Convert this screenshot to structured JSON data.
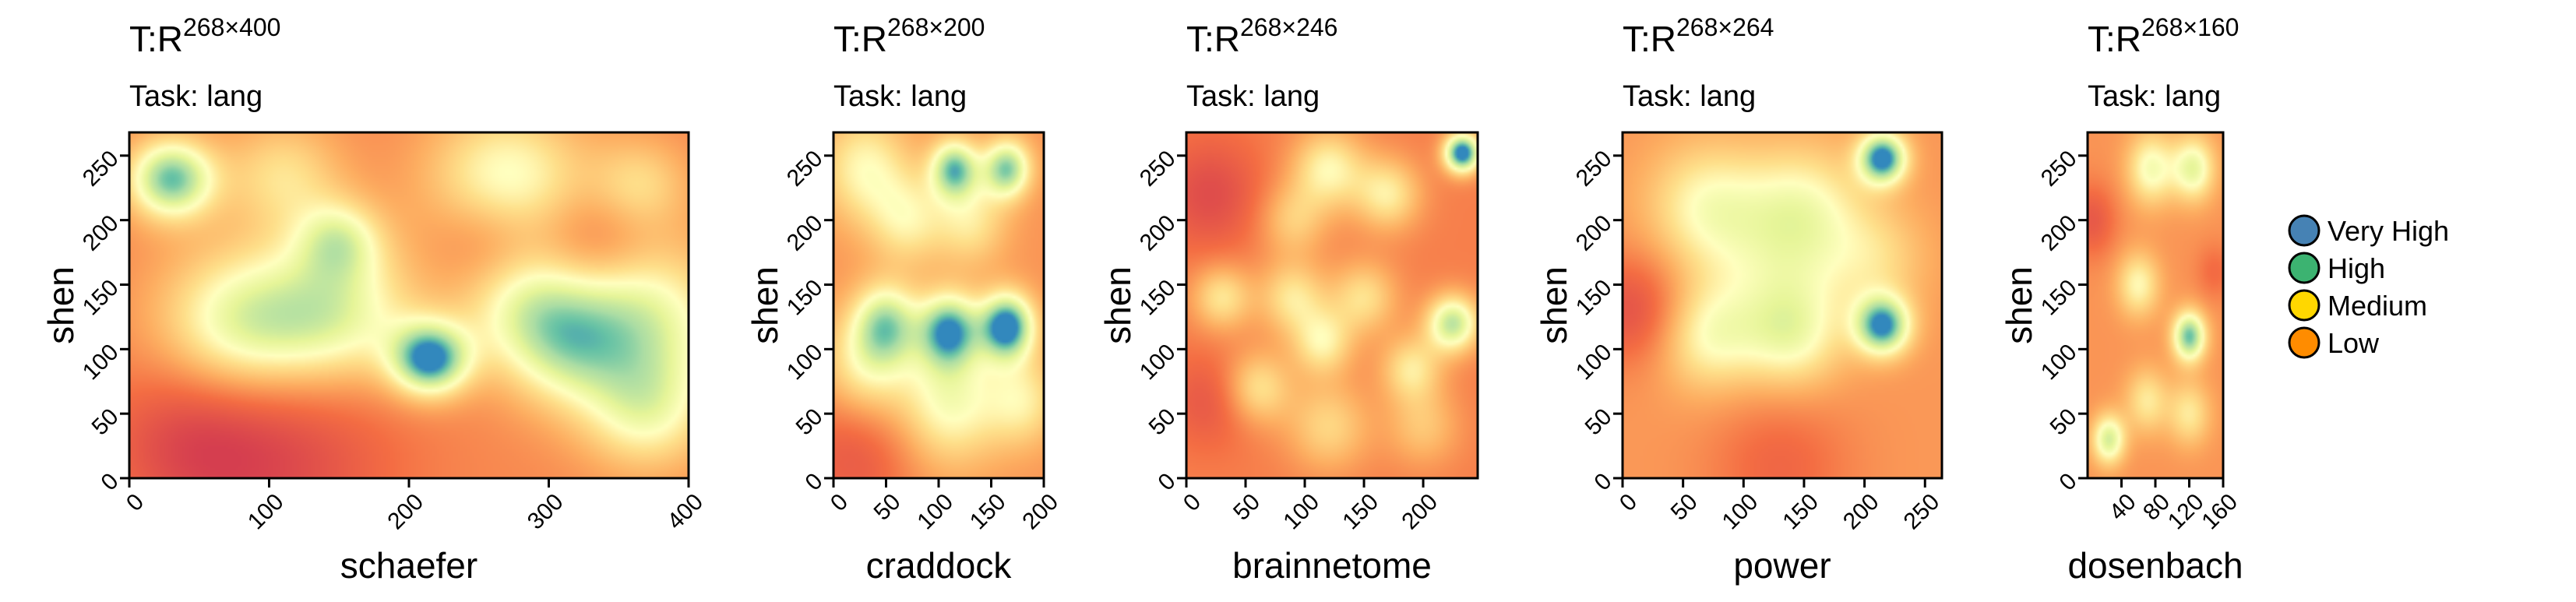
{
  "chart_data": [
    {
      "type": "heatmap",
      "title": "T:R",
      "title_superscript": "268×400",
      "subtitle": "Task: lang",
      "xlabel": "schaefer",
      "ylabel": "shen",
      "xlim": [
        0,
        400
      ],
      "ylim": [
        0,
        268
      ],
      "xticks": [
        0,
        100,
        200,
        300,
        400
      ],
      "xtick_labels": [
        "0",
        "100",
        "200",
        "300",
        "400"
      ],
      "yticks": [
        0,
        50,
        100,
        150,
        200,
        250
      ],
      "ytick_labels": [
        "0",
        "50",
        "100",
        "150",
        "200",
        "250"
      ],
      "base_level": 0.3,
      "blobs": [
        {
          "x": 30,
          "y": 232,
          "w": 0.62,
          "s": 22
        },
        {
          "x": 110,
          "y": 235,
          "w": 0.25,
          "s": 30
        },
        {
          "x": 270,
          "y": 228,
          "w": 0.4,
          "s": 40
        },
        {
          "x": 365,
          "y": 228,
          "w": 0.22,
          "s": 25
        },
        {
          "x": 150,
          "y": 185,
          "w": 0.32,
          "s": 22
        },
        {
          "x": 80,
          "y": 118,
          "w": 0.45,
          "s": 42
        },
        {
          "x": 150,
          "y": 128,
          "w": 0.4,
          "s": 40
        },
        {
          "x": 215,
          "y": 92,
          "w": 0.7,
          "s": 20
        },
        {
          "x": 285,
          "y": 135,
          "w": 0.35,
          "s": 35
        },
        {
          "x": 360,
          "y": 120,
          "w": 0.48,
          "s": 45
        },
        {
          "x": 370,
          "y": 50,
          "w": 0.3,
          "s": 32
        },
        {
          "x": 310,
          "y": 95,
          "w": 0.2,
          "s": 30
        },
        {
          "x": 260,
          "y": 185,
          "w": -0.2,
          "s": 30
        },
        {
          "x": 330,
          "y": 180,
          "w": -0.2,
          "s": 30
        },
        {
          "x": 100,
          "y": 20,
          "w": -0.25,
          "s": 60
        },
        {
          "x": 40,
          "y": 30,
          "w": -0.15,
          "s": 40
        }
      ]
    },
    {
      "type": "heatmap",
      "title": "T:R",
      "title_superscript": "268×200",
      "subtitle": "Task: lang",
      "xlabel": "craddock",
      "ylabel": "shen",
      "xlim": [
        0,
        200
      ],
      "ylim": [
        0,
        268
      ],
      "xticks": [
        0,
        50,
        100,
        150,
        200
      ],
      "xtick_labels": [
        "0",
        "50",
        "100",
        "150",
        "200"
      ],
      "yticks": [
        0,
        50,
        100,
        150,
        200,
        250
      ],
      "ytick_labels": [
        "0",
        "50",
        "100",
        "150",
        "200",
        "250"
      ],
      "base_level": 0.33,
      "blobs": [
        {
          "x": 30,
          "y": 240,
          "w": 0.3,
          "s": 30
        },
        {
          "x": 115,
          "y": 240,
          "w": 0.55,
          "s": 16
        },
        {
          "x": 165,
          "y": 240,
          "w": 0.55,
          "s": 16
        },
        {
          "x": 70,
          "y": 200,
          "w": 0.25,
          "s": 25
        },
        {
          "x": 130,
          "y": 200,
          "w": 0.25,
          "s": 25
        },
        {
          "x": 50,
          "y": 120,
          "w": 0.45,
          "s": 22
        },
        {
          "x": 110,
          "y": 115,
          "w": 0.6,
          "s": 20
        },
        {
          "x": 165,
          "y": 118,
          "w": 0.72,
          "s": 18
        },
        {
          "x": 30,
          "y": 85,
          "w": 0.3,
          "s": 30
        },
        {
          "x": 110,
          "y": 60,
          "w": 0.35,
          "s": 35
        },
        {
          "x": 180,
          "y": 60,
          "w": 0.25,
          "s": 25
        },
        {
          "x": 20,
          "y": 20,
          "w": -0.2,
          "s": 40
        }
      ]
    },
    {
      "type": "heatmap",
      "title": "T:R",
      "title_superscript": "268×246",
      "subtitle": "Task: lang",
      "xlabel": "brainnetome",
      "ylabel": "shen",
      "xlim": [
        0,
        246
      ],
      "ylim": [
        0,
        268
      ],
      "xticks": [
        0,
        50,
        100,
        150,
        200
      ],
      "xtick_labels": [
        "0",
        "50",
        "100",
        "150",
        "200"
      ],
      "yticks": [
        0,
        50,
        100,
        150,
        200,
        250
      ],
      "ytick_labels": [
        "0",
        "50",
        "100",
        "150",
        "200",
        "250"
      ],
      "base_level": 0.27,
      "blobs": [
        {
          "x": 233,
          "y": 252,
          "w": 0.8,
          "s": 11
        },
        {
          "x": 120,
          "y": 240,
          "w": 0.35,
          "s": 22
        },
        {
          "x": 170,
          "y": 220,
          "w": 0.32,
          "s": 20
        },
        {
          "x": 90,
          "y": 200,
          "w": 0.22,
          "s": 20
        },
        {
          "x": 30,
          "y": 140,
          "w": 0.3,
          "s": 18
        },
        {
          "x": 90,
          "y": 140,
          "w": 0.3,
          "s": 20
        },
        {
          "x": 150,
          "y": 140,
          "w": 0.28,
          "s": 20
        },
        {
          "x": 225,
          "y": 120,
          "w": 0.55,
          "s": 16
        },
        {
          "x": 115,
          "y": 105,
          "w": 0.32,
          "s": 18
        },
        {
          "x": 190,
          "y": 85,
          "w": 0.3,
          "s": 18
        },
        {
          "x": 60,
          "y": 70,
          "w": 0.3,
          "s": 20
        },
        {
          "x": 120,
          "y": 40,
          "w": 0.25,
          "s": 25
        },
        {
          "x": 200,
          "y": 40,
          "w": 0.2,
          "s": 22
        },
        {
          "x": 20,
          "y": 220,
          "w": -0.2,
          "s": 30
        },
        {
          "x": 20,
          "y": 60,
          "w": -0.15,
          "s": 25
        }
      ]
    },
    {
      "type": "heatmap",
      "title": "T:R",
      "title_superscript": "268×264",
      "subtitle": "Task: lang",
      "xlabel": "power",
      "ylabel": "shen",
      "xlim": [
        0,
        264
      ],
      "ylim": [
        0,
        268
      ],
      "xticks": [
        0,
        50,
        100,
        150,
        200,
        250
      ],
      "xtick_labels": [
        "0",
        "50",
        "100",
        "150",
        "200",
        "250"
      ],
      "yticks": [
        0,
        50,
        100,
        150,
        200,
        250
      ],
      "ytick_labels": [
        "0",
        "50",
        "100",
        "150",
        "200",
        "250"
      ],
      "base_level": 0.34,
      "blobs": [
        {
          "x": 215,
          "y": 248,
          "w": 0.7,
          "s": 14
        },
        {
          "x": 70,
          "y": 210,
          "w": 0.3,
          "s": 35
        },
        {
          "x": 150,
          "y": 210,
          "w": 0.28,
          "s": 35
        },
        {
          "x": 215,
          "y": 118,
          "w": 0.65,
          "s": 16
        },
        {
          "x": 70,
          "y": 110,
          "w": 0.3,
          "s": 30
        },
        {
          "x": 140,
          "y": 110,
          "w": 0.3,
          "s": 30
        },
        {
          "x": 130,
          "y": 160,
          "w": 0.18,
          "s": 40
        },
        {
          "x": 210,
          "y": 170,
          "w": 0.18,
          "s": 30
        },
        {
          "x": 10,
          "y": 130,
          "w": -0.25,
          "s": 30
        },
        {
          "x": 130,
          "y": 10,
          "w": -0.15,
          "s": 40
        }
      ]
    },
    {
      "type": "heatmap",
      "title": "T:R",
      "title_superscript": "268×160",
      "subtitle": "Task: lang",
      "xlabel": "dosenbach",
      "ylabel": "shen",
      "xlim": [
        0,
        160
      ],
      "ylim": [
        0,
        268
      ],
      "xticks": [
        40,
        80,
        120,
        160
      ],
      "xtick_labels": [
        "40",
        "80",
        "120",
        "160"
      ],
      "yticks": [
        0,
        50,
        100,
        150,
        200,
        250
      ],
      "ytick_labels": [
        "0",
        "50",
        "100",
        "150",
        "200",
        "250"
      ],
      "base_level": 0.33,
      "blobs": [
        {
          "x": 120,
          "y": 110,
          "w": 0.6,
          "s": 14
        },
        {
          "x": 75,
          "y": 240,
          "w": 0.35,
          "s": 20
        },
        {
          "x": 125,
          "y": 240,
          "w": 0.4,
          "s": 18
        },
        {
          "x": 60,
          "y": 150,
          "w": 0.3,
          "s": 18
        },
        {
          "x": 25,
          "y": 30,
          "w": 0.45,
          "s": 14
        },
        {
          "x": 70,
          "y": 60,
          "w": 0.25,
          "s": 18
        },
        {
          "x": 120,
          "y": 50,
          "w": 0.25,
          "s": 18
        },
        {
          "x": 5,
          "y": 200,
          "w": -0.2,
          "s": 20
        },
        {
          "x": 150,
          "y": 160,
          "w": -0.12,
          "s": 15
        }
      ]
    }
  ],
  "legend": {
    "placement": "right",
    "items": [
      {
        "label": "Very High",
        "color": "#4682b4"
      },
      {
        "label": "High",
        "color": "#3cb371"
      },
      {
        "label": "Medium",
        "color": "#ffd700"
      },
      {
        "label": "Low",
        "color": "#ff8c00"
      }
    ]
  }
}
